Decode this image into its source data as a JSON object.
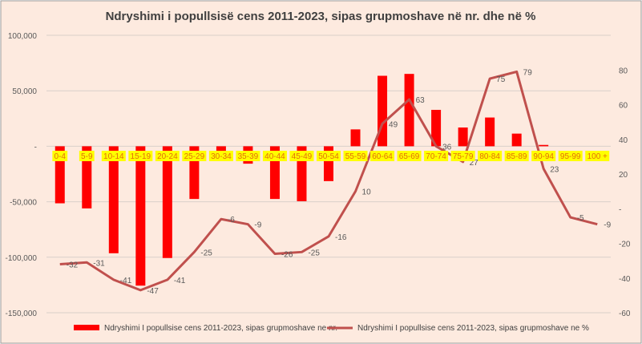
{
  "chart_data": {
    "type": "bar+line",
    "title": "Ndryshimi i popullsisë cens 2011-2023, sipas grupmoshave në nr. dhe në %",
    "categories": [
      "0-4",
      "5-9",
      "10-14",
      "15-19",
      "20-24",
      "25-29",
      "30-34",
      "35-39",
      "40-44",
      "45-49",
      "50-54",
      "55-59",
      "60-64",
      "65-69",
      "70-74",
      "75-79",
      "80-84",
      "85-89",
      "90-94",
      "95-99",
      "100 +"
    ],
    "series": [
      {
        "name": "Ndryshimi I popullsise cens 2011-2023, sipas grupmoshave ne nr.",
        "type": "bar",
        "axis": "left",
        "color": "#ff0000",
        "values": [
          -51400,
          -56000,
          -96400,
          -125600,
          -100700,
          -47500,
          -4800,
          -15700,
          -47500,
          -49500,
          -31400,
          15200,
          63500,
          65200,
          32800,
          16900,
          25900,
          11400,
          1200,
          0,
          0
        ]
      },
      {
        "name": "Ndryshimi I popullsise cens 2011-2023, sipas grupmoshave ne %",
        "type": "line",
        "axis": "right",
        "color": "#c0504d",
        "values": [
          -32,
          -31,
          -41,
          -47,
          -41,
          -25,
          -6,
          -9,
          -26,
          -25,
          -16,
          10,
          49,
          63,
          36,
          27,
          75,
          79,
          23,
          -5,
          -9
        ],
        "labels": [
          "-32",
          "-31",
          "-41",
          "-47",
          "-41",
          "-25",
          "-6",
          "-9",
          "-26",
          "-25",
          "-16",
          "10",
          "49",
          "63",
          "36",
          "27",
          "75",
          "79",
          "23",
          "-5",
          "-9"
        ]
      }
    ],
    "left_axis": {
      "ylim": [
        -150000,
        100000
      ],
      "ticks": [
        "100,000",
        "50,000",
        "-",
        "-50,000",
        "-100,000",
        "-150,000"
      ],
      "tick_values": [
        100000,
        50000,
        0,
        -50000,
        -100000,
        -150000
      ]
    },
    "right_axis": {
      "ylim": [
        -60,
        100
      ],
      "ticks": [
        "80",
        "60",
        "40",
        "20",
        "-",
        "-20",
        "-40",
        "-60"
      ],
      "tick_values": [
        80,
        60,
        40,
        20,
        0,
        -20,
        -40,
        -60
      ]
    },
    "grid": true,
    "legend": "bottom",
    "background": "#fdeadf",
    "category_label_highlight": "#ffff00",
    "category_label_color": "#e46c0a"
  }
}
